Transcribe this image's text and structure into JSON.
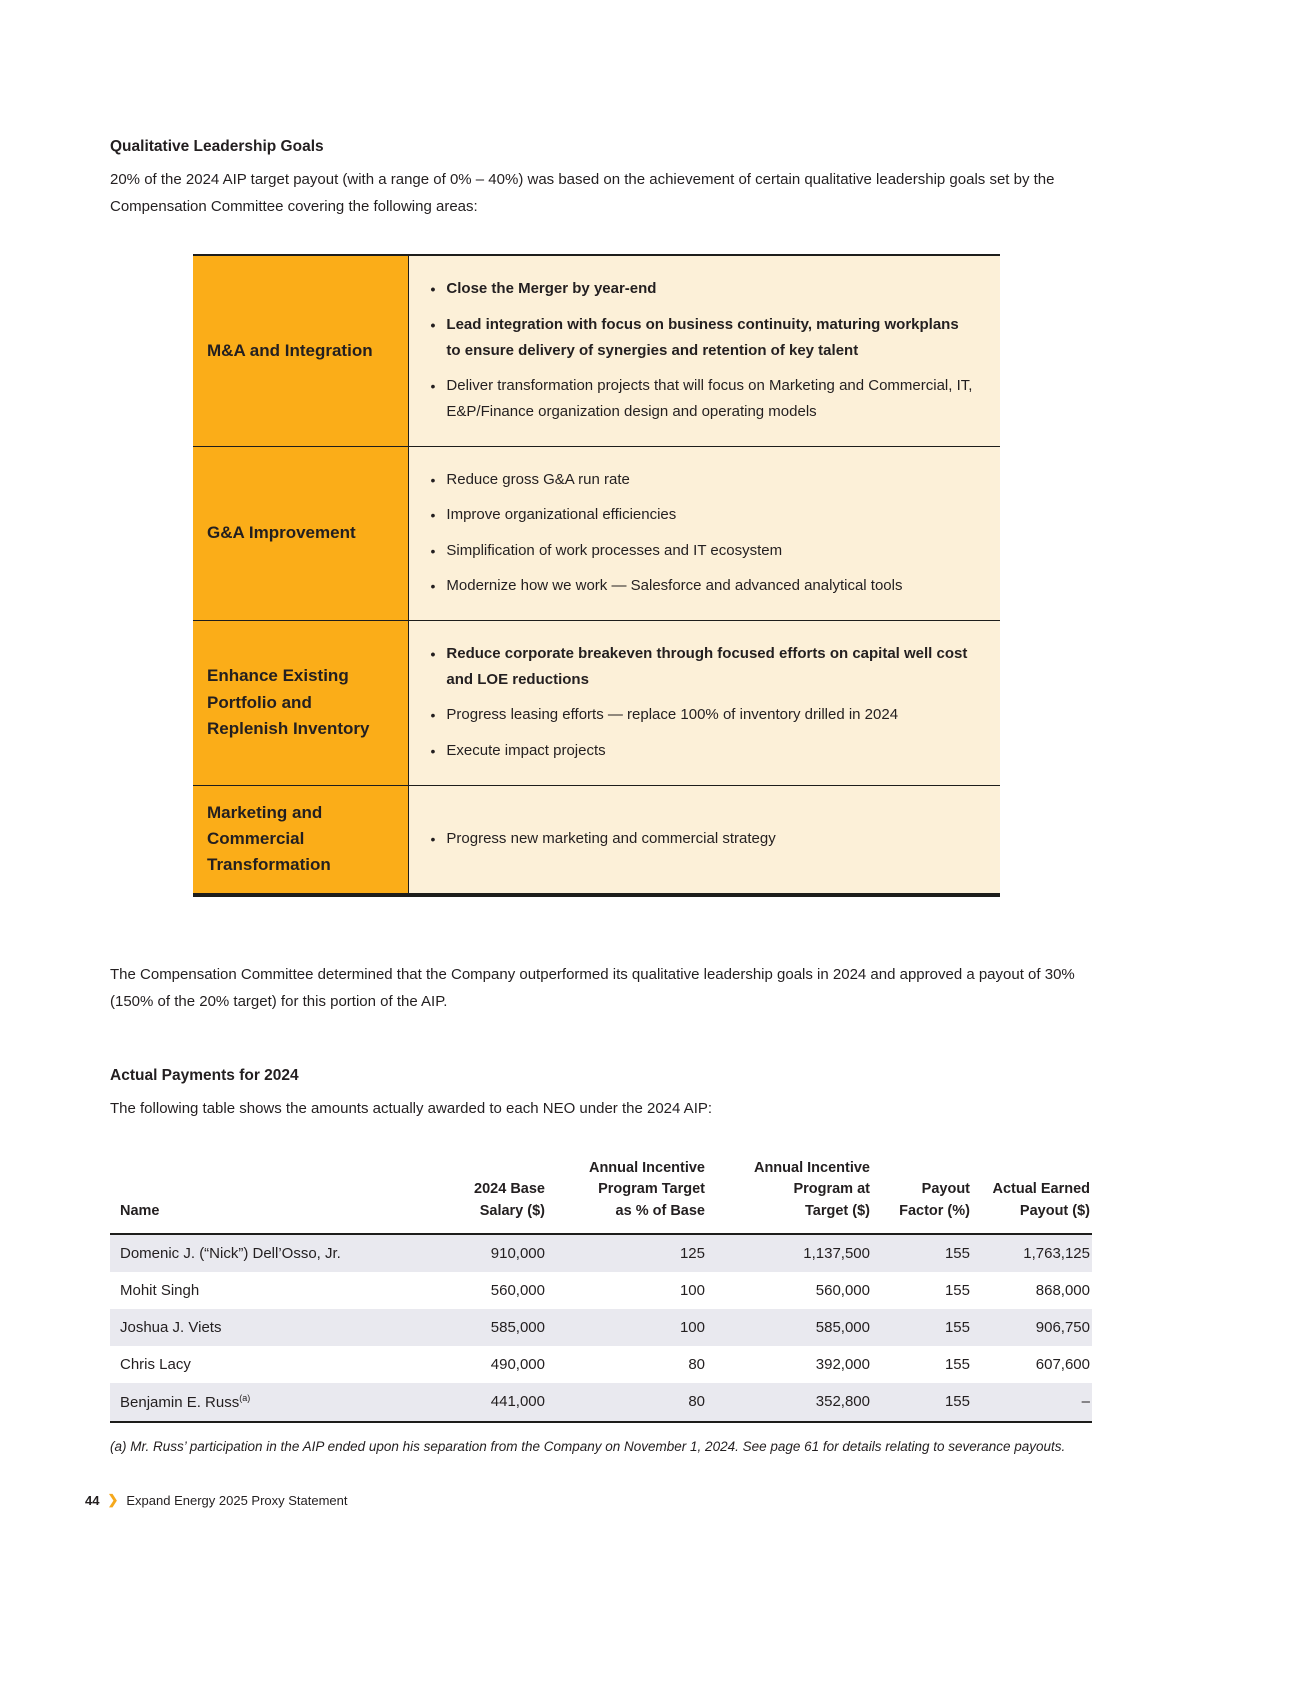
{
  "colors": {
    "accent_orange": "#FBAD18",
    "cream_panel": "#FCF0D8",
    "row_shade": "#E9E9EF",
    "text": "#231F20",
    "footer_chevron": "#F5A81C"
  },
  "qualitative": {
    "title": "Qualitative Leadership Goals",
    "intro": "20% of the 2024 AIP target payout (with a range of 0% – 40%) was based on the achievement of certain qualitative leadership goals set by the Compensation Committee covering the following areas:",
    "rows": [
      {
        "label": "M&A and Integration",
        "bullets": [
          {
            "text": "Close the Merger by year-end",
            "bold": true
          },
          {
            "text": "Lead integration with focus on business continuity, maturing workplans to ensure delivery of synergies and retention of key talent",
            "bold": true
          },
          {
            "text": "Deliver transformation projects that will focus on Marketing and Commercial, IT, E&P/Finance organization design and operating models",
            "bold": false
          }
        ]
      },
      {
        "label": "G&A Improvement",
        "bullets": [
          {
            "text": "Reduce gross G&A run rate",
            "bold": false
          },
          {
            "text": "Improve organizational efficiencies",
            "bold": false
          },
          {
            "text": "Simplification of work processes and IT ecosystem",
            "bold": false
          },
          {
            "text": "Modernize how we work — Salesforce and advanced analytical tools",
            "bold": false
          }
        ]
      },
      {
        "label": "Enhance Existing Portfolio and Replenish Inventory",
        "bullets": [
          {
            "text": "Reduce corporate breakeven through focused efforts on capital well cost and LOE reductions",
            "bold": true
          },
          {
            "text": "Progress leasing efforts — replace 100% of inventory drilled in 2024",
            "bold": false
          },
          {
            "text": "Execute impact projects",
            "bold": false
          }
        ]
      },
      {
        "label": "Marketing and Commercial Transformation",
        "bullets": [
          {
            "text": "Progress new marketing and commercial strategy",
            "bold": false
          }
        ]
      }
    ]
  },
  "determination": "The Compensation Committee determined that the Company outperformed its qualitative leadership goals in 2024 and approved a payout of 30% (150% of the 20% target) for this portion of the AIP.",
  "payments": {
    "title": "Actual Payments for 2024",
    "intro": "The following table shows the amounts actually awarded to each NEO under the 2024 AIP:",
    "columns": [
      {
        "lines": [
          "Name"
        ],
        "align": "left"
      },
      {
        "lines": [
          "2024 Base",
          "Salary ($)"
        ],
        "align": "right"
      },
      {
        "lines": [
          "Annual Incentive",
          "Program Target",
          "as % of Base"
        ],
        "align": "right"
      },
      {
        "lines": [
          "Annual Incentive",
          "Program at",
          "Target ($)"
        ],
        "align": "right"
      },
      {
        "lines": [
          "Payout",
          "Factor (%)"
        ],
        "align": "right"
      },
      {
        "lines": [
          "Actual Earned",
          "Payout ($)"
        ],
        "align": "right"
      }
    ],
    "rows": [
      {
        "cells": [
          "Domenic J. (“Nick”) Dell’Osso, Jr.",
          "910,000",
          "125",
          "1,137,500",
          "155",
          "1,763,125"
        ]
      },
      {
        "cells": [
          "Mohit Singh",
          "560,000",
          "100",
          "560,000",
          "155",
          "868,000"
        ]
      },
      {
        "cells": [
          "Joshua J. Viets",
          "585,000",
          "100",
          "585,000",
          "155",
          "906,750"
        ]
      },
      {
        "cells": [
          "Chris Lacy",
          "490,000",
          "80",
          "392,000",
          "155",
          "607,600"
        ]
      },
      {
        "cells": [
          "Benjamin E. Russ",
          "441,000",
          "80",
          "352,800",
          "155",
          "–"
        ],
        "sup": "(a)"
      }
    ],
    "footnote": "(a)  Mr. Russ’ participation in the AIP ended upon his separation from the Company on November 1, 2024. See page 61 for details relating to severance payouts."
  },
  "footer": {
    "page_number": "44",
    "text": "Expand Energy 2025 Proxy Statement"
  }
}
